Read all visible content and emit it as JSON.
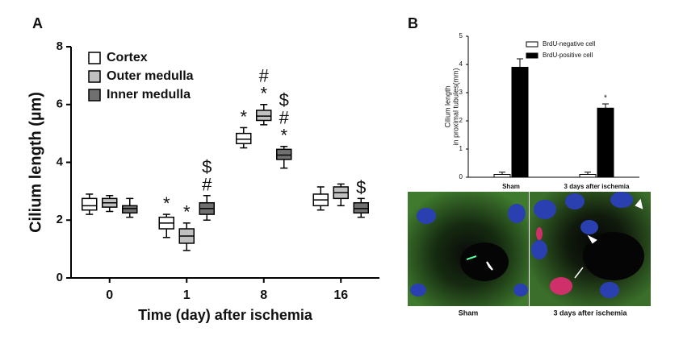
{
  "chart_data": [
    {
      "type": "box",
      "panel_label": "A",
      "ylabel": "Cilium length (µm)",
      "xlabel": "Time (day) after ischemia",
      "categories": [
        "0",
        "1",
        "8",
        "16"
      ],
      "ylim": [
        0,
        8
      ],
      "yticks": [
        0,
        2,
        4,
        6,
        8
      ],
      "legend": "top-left",
      "annotation_colors": {
        "*": "#222222",
        "#": "#8a7060",
        "$": "#333333"
      },
      "series": [
        {
          "name": "Cortex",
          "color": "#ffffff",
          "min": [
            2.2,
            1.4,
            4.5,
            2.35
          ],
          "q1": [
            2.35,
            1.7,
            4.65,
            2.5
          ],
          "median": [
            2.5,
            1.9,
            4.8,
            2.7
          ],
          "q3": [
            2.75,
            2.1,
            5.0,
            2.9
          ],
          "max": [
            2.9,
            2.2,
            5.2,
            3.15
          ],
          "annotations": [
            null,
            [
              "*"
            ],
            [
              "*"
            ],
            null
          ]
        },
        {
          "name": "Outer medulla",
          "color": "#c0c0c0",
          "min": [
            2.3,
            0.95,
            5.3,
            2.5
          ],
          "q1": [
            2.45,
            1.2,
            5.45,
            2.75
          ],
          "median": [
            2.6,
            1.45,
            5.6,
            2.95
          ],
          "q3": [
            2.75,
            1.7,
            5.8,
            3.15
          ],
          "max": [
            2.85,
            1.9,
            6.0,
            3.25
          ],
          "annotations": [
            null,
            [
              "*"
            ],
            [
              "#",
              "*"
            ],
            null
          ]
        },
        {
          "name": "Inner medulla",
          "color": "#707070",
          "min": [
            2.1,
            2.0,
            3.8,
            2.1
          ],
          "q1": [
            2.25,
            2.2,
            4.1,
            2.25
          ],
          "median": [
            2.4,
            2.4,
            4.25,
            2.4
          ],
          "q3": [
            2.5,
            2.6,
            4.45,
            2.6
          ],
          "max": [
            2.75,
            2.85,
            4.55,
            2.75
          ],
          "annotations": [
            null,
            [
              "$",
              "#"
            ],
            [
              "$",
              "#",
              "*"
            ],
            [
              "$"
            ]
          ]
        }
      ]
    },
    {
      "type": "bar",
      "panel_label": "B",
      "ylabel": [
        "Cilium length",
        "in proximal tubules(mm)"
      ],
      "categories": [
        "Sham",
        "3 days after ischemia"
      ],
      "ylim": [
        0,
        5
      ],
      "yticks": [
        0,
        1,
        2,
        3,
        4,
        5
      ],
      "legend": "top-right",
      "series": [
        {
          "name": "BrdU-negative cell",
          "color": "#ffffff",
          "values": [
            0.1,
            0.1
          ],
          "errors": [
            0.08,
            0.08
          ],
          "annotations": [
            null,
            null
          ]
        },
        {
          "name": "BrdU-positive cell",
          "color": "#000000",
          "values": [
            3.9,
            2.45
          ],
          "errors": [
            0.3,
            0.15
          ],
          "annotations": [
            null,
            "*"
          ]
        }
      ]
    }
  ],
  "images": {
    "captions": [
      "Sham",
      "3 days after ischemia"
    ]
  }
}
